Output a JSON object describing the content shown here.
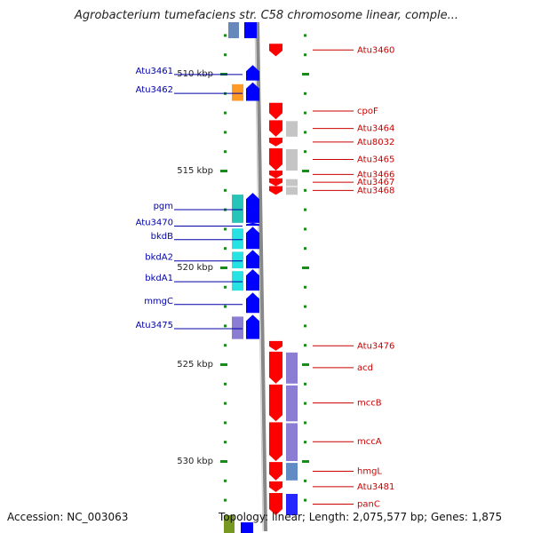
{
  "title": "Agrobacterium tumefaciens str. C58 chromosome linear, comple...",
  "footer": {
    "accession": "Accession: NC_003063",
    "info": "Topology: linear; Length: 2,075,577 bp; Genes: 1,875"
  },
  "colors": {
    "strand_plus": "#0000ff",
    "strand_minus": "#ff0000",
    "backbone": "#888888",
    "tick": "#1a8a1a",
    "left_label": "#0000aa",
    "right_label": "#cc0000"
  },
  "scale": {
    "ticks": [
      {
        "label": "510 kbp",
        "kbp": 510
      },
      {
        "label": "515 kbp",
        "kbp": 515
      },
      {
        "label": "520 kbp",
        "kbp": 520
      },
      {
        "label": "525 kbp",
        "kbp": 525
      },
      {
        "label": "530 kbp",
        "kbp": 530
      }
    ]
  },
  "left_genes": [
    {
      "label": "Atu3461",
      "start_kbp": 509.55,
      "end_kbp": 510.35,
      "cog_color": null
    },
    {
      "label": "Atu3462",
      "start_kbp": 510.45,
      "end_kbp": 511.4,
      "cog_color": "#ff8800"
    },
    {
      "label": "pgm",
      "start_kbp": 516.15,
      "end_kbp": 517.7,
      "cog_color": "#00bbaa"
    },
    {
      "label": "Atu3470",
      "start_kbp": 517.7,
      "end_kbp": 517.85,
      "cog_color": null
    },
    {
      "label": "bkdB",
      "start_kbp": 517.9,
      "end_kbp": 519.05,
      "cog_color": "#00dddd"
    },
    {
      "label": "bkdA2",
      "start_kbp": 519.1,
      "end_kbp": 520.05,
      "cog_color": "#00dddd"
    },
    {
      "label": "bkdA1",
      "start_kbp": 520.1,
      "end_kbp": 521.2,
      "cog_color": "#00dddd"
    },
    {
      "label": "mmgC",
      "start_kbp": 521.3,
      "end_kbp": 522.35,
      "cog_color": null
    },
    {
      "label": "Atu3475",
      "start_kbp": 522.45,
      "end_kbp": 523.7,
      "cog_color": "#7766cc"
    }
  ],
  "right_genes": [
    {
      "label": "Atu3460",
      "start_kbp": 508.45,
      "end_kbp": 509.1,
      "cog_color": null
    },
    {
      "label": "cpoF",
      "start_kbp": 511.5,
      "end_kbp": 512.35,
      "cog_color": null
    },
    {
      "label": "Atu3464",
      "start_kbp": 512.4,
      "end_kbp": 513.25,
      "cog_color": "#bbbbbb"
    },
    {
      "label": "Atu8032",
      "start_kbp": 513.3,
      "end_kbp": 513.75,
      "cog_color": null
    },
    {
      "label": "Atu3465",
      "start_kbp": 513.85,
      "end_kbp": 515.0,
      "cog_color": "#bbbbbb"
    },
    {
      "label": "Atu3466",
      "start_kbp": 515.0,
      "end_kbp": 515.4,
      "cog_color": null
    },
    {
      "label": "Atu3467",
      "start_kbp": 515.4,
      "end_kbp": 515.8,
      "cog_color": "#bbbbbb"
    },
    {
      "label": "Atu3468",
      "start_kbp": 515.8,
      "end_kbp": 516.25,
      "cog_color": "#bbbbbb"
    },
    {
      "label": "Atu3476",
      "start_kbp": 523.8,
      "end_kbp": 524.3,
      "cog_color": null
    },
    {
      "label": "acd",
      "start_kbp": 524.35,
      "end_kbp": 526.0,
      "cog_color": "#7766cc"
    },
    {
      "label": "mccB",
      "start_kbp": 526.05,
      "end_kbp": 527.95,
      "cog_color": "#7766cc"
    },
    {
      "label": "mccA",
      "start_kbp": 528.0,
      "end_kbp": 530.0,
      "cog_color": "#7766cc"
    },
    {
      "label": "hmgL",
      "start_kbp": 530.05,
      "end_kbp": 531.0,
      "cog_color": "#4477bb"
    },
    {
      "label": "Atu3481",
      "start_kbp": 531.05,
      "end_kbp": 531.6,
      "cog_color": null
    },
    {
      "label": "panC",
      "start_kbp": 531.65,
      "end_kbp": 532.8,
      "cog_color": "#0000ff"
    }
  ]
}
